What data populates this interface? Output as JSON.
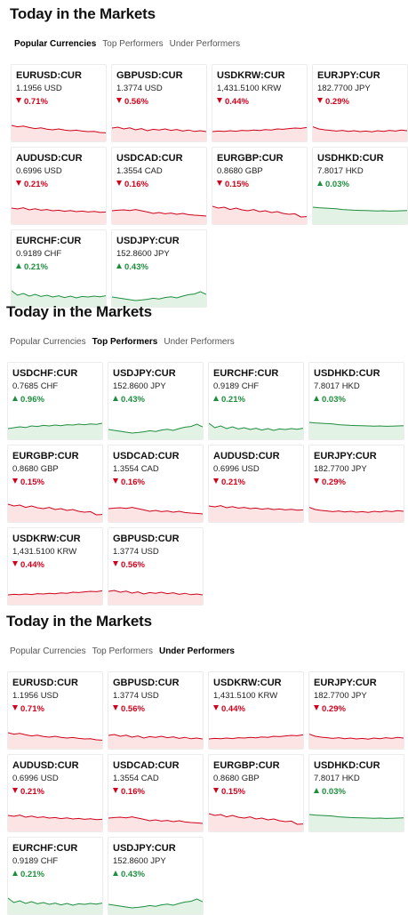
{
  "colors": {
    "down": "#d0021b",
    "up": "#1e8e3e",
    "down_fill": "#fde4e4",
    "up_fill": "#e2f2e5"
  },
  "sections": [
    {
      "title": "Today in the Markets",
      "tabs": [
        "Popular Currencies",
        "Top Performers",
        "Under Performers"
      ],
      "active_tab": 0,
      "cards": [
        {
          "symbol": "EURUSD:CUR",
          "price": "1.1956 USD",
          "change": "0.71%",
          "direction": "down",
          "spark": [
            0.7,
            0.62,
            0.66,
            0.58,
            0.52,
            0.56,
            0.49,
            0.45,
            0.5,
            0.44,
            0.4,
            0.43,
            0.38,
            0.35,
            0.36,
            0.3,
            0.28
          ]
        },
        {
          "symbol": "GBPUSD:CUR",
          "price": "1.3774 USD",
          "change": "0.56%",
          "direction": "down",
          "spark": [
            0.55,
            0.6,
            0.5,
            0.56,
            0.45,
            0.52,
            0.4,
            0.48,
            0.44,
            0.5,
            0.42,
            0.47,
            0.38,
            0.44,
            0.36,
            0.4,
            0.35
          ]
        },
        {
          "symbol": "USDKRW:CUR",
          "price": "1,431.5100 KRW",
          "change": "0.44%",
          "direction": "down",
          "spark": [
            0.35,
            0.38,
            0.36,
            0.4,
            0.37,
            0.42,
            0.4,
            0.44,
            0.41,
            0.46,
            0.44,
            0.5,
            0.48,
            0.52,
            0.55,
            0.53,
            0.58
          ]
        },
        {
          "symbol": "EURJPY:CUR",
          "price": "182.7700 JPY",
          "change": "0.29%",
          "direction": "down",
          "spark": [
            0.62,
            0.5,
            0.45,
            0.42,
            0.38,
            0.42,
            0.36,
            0.4,
            0.35,
            0.38,
            0.34,
            0.4,
            0.36,
            0.42,
            0.38,
            0.44,
            0.4
          ]
        },
        {
          "symbol": "AUDUSD:CUR",
          "price": "0.6996 USD",
          "change": "0.21%",
          "direction": "down",
          "spark": [
            0.7,
            0.65,
            0.72,
            0.6,
            0.66,
            0.58,
            0.62,
            0.55,
            0.58,
            0.52,
            0.56,
            0.5,
            0.53,
            0.48,
            0.51,
            0.46,
            0.48
          ]
        },
        {
          "symbol": "USDCAD:CUR",
          "price": "1.3554 CAD",
          "change": "0.16%",
          "direction": "down",
          "spark": [
            0.55,
            0.58,
            0.6,
            0.56,
            0.62,
            0.55,
            0.48,
            0.4,
            0.45,
            0.38,
            0.42,
            0.35,
            0.4,
            0.33,
            0.3,
            0.28,
            0.25
          ]
        },
        {
          "symbol": "EURGBP:CUR",
          "price": "0.8680 GBP",
          "change": "0.15%",
          "direction": "down",
          "spark": [
            0.8,
            0.7,
            0.75,
            0.62,
            0.7,
            0.6,
            0.55,
            0.62,
            0.5,
            0.55,
            0.45,
            0.5,
            0.4,
            0.35,
            0.38,
            0.2,
            0.22
          ]
        },
        {
          "symbol": "USDHKD:CUR",
          "price": "7.8017 HKD",
          "change": "0.03%",
          "direction": "up",
          "spark": [
            0.75,
            0.72,
            0.7,
            0.68,
            0.66,
            0.62,
            0.6,
            0.58,
            0.57,
            0.56,
            0.55,
            0.54,
            0.55,
            0.53,
            0.54,
            0.55,
            0.56
          ]
        },
        {
          "symbol": "EURCHF:CUR",
          "price": "0.9189 CHF",
          "change": "0.21%",
          "direction": "up",
          "spark": [
            0.7,
            0.45,
            0.55,
            0.4,
            0.5,
            0.38,
            0.45,
            0.35,
            0.42,
            0.32,
            0.4,
            0.3,
            0.38,
            0.35,
            0.4,
            0.36,
            0.42
          ]
        },
        {
          "symbol": "USDJPY:CUR",
          "price": "152.8600 JPY",
          "change": "0.43%",
          "direction": "up",
          "spark": [
            0.35,
            0.3,
            0.25,
            0.2,
            0.15,
            0.18,
            0.22,
            0.28,
            0.24,
            0.32,
            0.36,
            0.3,
            0.4,
            0.48,
            0.52,
            0.65,
            0.5
          ]
        }
      ]
    },
    {
      "title": "Today in the Markets",
      "tabs": [
        "Popular Currencies",
        "Top Performers",
        "Under Performers"
      ],
      "active_tab": 1,
      "cards": [
        {
          "symbol": "USDCHF:CUR",
          "price": "0.7685 CHF",
          "change": "0.96%",
          "direction": "up",
          "spark": [
            0.4,
            0.45,
            0.5,
            0.46,
            0.55,
            0.52,
            0.58,
            0.55,
            0.6,
            0.56,
            0.62,
            0.6,
            0.65,
            0.62,
            0.66,
            0.64,
            0.7
          ]
        },
        {
          "symbol": "USDJPY:CUR",
          "price": "152.8600 JPY",
          "change": "0.43%",
          "direction": "up",
          "spark": [
            0.35,
            0.3,
            0.25,
            0.2,
            0.15,
            0.18,
            0.22,
            0.28,
            0.24,
            0.32,
            0.36,
            0.3,
            0.4,
            0.48,
            0.52,
            0.65,
            0.5
          ]
        },
        {
          "symbol": "EURCHF:CUR",
          "price": "0.9189 CHF",
          "change": "0.21%",
          "direction": "up",
          "spark": [
            0.7,
            0.45,
            0.55,
            0.4,
            0.5,
            0.38,
            0.45,
            0.35,
            0.42,
            0.32,
            0.4,
            0.3,
            0.38,
            0.35,
            0.4,
            0.36,
            0.42
          ]
        },
        {
          "symbol": "USDHKD:CUR",
          "price": "7.8017 HKD",
          "change": "0.03%",
          "direction": "up",
          "spark": [
            0.75,
            0.72,
            0.7,
            0.68,
            0.66,
            0.62,
            0.6,
            0.58,
            0.57,
            0.56,
            0.55,
            0.54,
            0.55,
            0.53,
            0.54,
            0.55,
            0.56
          ]
        },
        {
          "symbol": "EURGBP:CUR",
          "price": "0.8680 GBP",
          "change": "0.15%",
          "direction": "down",
          "spark": [
            0.8,
            0.7,
            0.75,
            0.62,
            0.7,
            0.6,
            0.55,
            0.62,
            0.5,
            0.55,
            0.45,
            0.5,
            0.4,
            0.35,
            0.38,
            0.2,
            0.22
          ]
        },
        {
          "symbol": "USDCAD:CUR",
          "price": "1.3554 CAD",
          "change": "0.16%",
          "direction": "down",
          "spark": [
            0.55,
            0.58,
            0.6,
            0.56,
            0.62,
            0.55,
            0.48,
            0.4,
            0.45,
            0.38,
            0.42,
            0.35,
            0.4,
            0.33,
            0.3,
            0.28,
            0.25
          ]
        },
        {
          "symbol": "AUDUSD:CUR",
          "price": "0.6996 USD",
          "change": "0.21%",
          "direction": "down",
          "spark": [
            0.7,
            0.65,
            0.72,
            0.6,
            0.66,
            0.58,
            0.62,
            0.55,
            0.58,
            0.52,
            0.56,
            0.5,
            0.53,
            0.48,
            0.51,
            0.46,
            0.48
          ]
        },
        {
          "symbol": "EURJPY:CUR",
          "price": "182.7700 JPY",
          "change": "0.29%",
          "direction": "down",
          "spark": [
            0.62,
            0.5,
            0.45,
            0.42,
            0.38,
            0.42,
            0.36,
            0.4,
            0.35,
            0.38,
            0.34,
            0.4,
            0.36,
            0.42,
            0.38,
            0.44,
            0.4
          ]
        },
        {
          "symbol": "USDKRW:CUR",
          "price": "1,431.5100 KRW",
          "change": "0.44%",
          "direction": "down",
          "spark": [
            0.35,
            0.38,
            0.36,
            0.4,
            0.37,
            0.42,
            0.4,
            0.44,
            0.41,
            0.46,
            0.44,
            0.5,
            0.48,
            0.52,
            0.55,
            0.53,
            0.58
          ]
        },
        {
          "symbol": "GBPUSD:CUR",
          "price": "1.3774 USD",
          "change": "0.56%",
          "direction": "down",
          "spark": [
            0.55,
            0.6,
            0.5,
            0.56,
            0.45,
            0.52,
            0.4,
            0.48,
            0.44,
            0.5,
            0.42,
            0.47,
            0.38,
            0.44,
            0.36,
            0.4,
            0.35
          ]
        }
      ]
    },
    {
      "title": "Today in the Markets",
      "tabs": [
        "Popular Currencies",
        "Top Performers",
        "Under Performers"
      ],
      "active_tab": 2,
      "cards": [
        {
          "symbol": "EURUSD:CUR",
          "price": "1.1956 USD",
          "change": "0.71%",
          "direction": "down",
          "spark": [
            0.7,
            0.62,
            0.66,
            0.58,
            0.52,
            0.56,
            0.49,
            0.45,
            0.5,
            0.44,
            0.4,
            0.43,
            0.38,
            0.35,
            0.36,
            0.3,
            0.28
          ]
        },
        {
          "symbol": "GBPUSD:CUR",
          "price": "1.3774 USD",
          "change": "0.56%",
          "direction": "down",
          "spark": [
            0.55,
            0.6,
            0.5,
            0.56,
            0.45,
            0.52,
            0.4,
            0.48,
            0.44,
            0.5,
            0.42,
            0.47,
            0.38,
            0.44,
            0.36,
            0.4,
            0.35
          ]
        },
        {
          "symbol": "USDKRW:CUR",
          "price": "1,431.5100 KRW",
          "change": "0.44%",
          "direction": "down",
          "spark": [
            0.35,
            0.38,
            0.36,
            0.4,
            0.37,
            0.42,
            0.4,
            0.44,
            0.41,
            0.46,
            0.44,
            0.5,
            0.48,
            0.52,
            0.55,
            0.53,
            0.58
          ]
        },
        {
          "symbol": "EURJPY:CUR",
          "price": "182.7700 JPY",
          "change": "0.29%",
          "direction": "down",
          "spark": [
            0.62,
            0.5,
            0.45,
            0.42,
            0.38,
            0.42,
            0.36,
            0.4,
            0.35,
            0.38,
            0.34,
            0.4,
            0.36,
            0.42,
            0.38,
            0.44,
            0.4
          ]
        },
        {
          "symbol": "AUDUSD:CUR",
          "price": "0.6996 USD",
          "change": "0.21%",
          "direction": "down",
          "spark": [
            0.7,
            0.65,
            0.72,
            0.6,
            0.66,
            0.58,
            0.62,
            0.55,
            0.58,
            0.52,
            0.56,
            0.5,
            0.53,
            0.48,
            0.51,
            0.46,
            0.48
          ]
        },
        {
          "symbol": "USDCAD:CUR",
          "price": "1.3554 CAD",
          "change": "0.16%",
          "direction": "down",
          "spark": [
            0.55,
            0.58,
            0.6,
            0.56,
            0.62,
            0.55,
            0.48,
            0.4,
            0.45,
            0.38,
            0.42,
            0.35,
            0.4,
            0.33,
            0.3,
            0.28,
            0.25
          ]
        },
        {
          "symbol": "EURGBP:CUR",
          "price": "0.8680 GBP",
          "change": "0.15%",
          "direction": "down",
          "spark": [
            0.8,
            0.7,
            0.75,
            0.62,
            0.7,
            0.6,
            0.55,
            0.62,
            0.5,
            0.55,
            0.45,
            0.5,
            0.4,
            0.35,
            0.38,
            0.2,
            0.22
          ]
        },
        {
          "symbol": "USDHKD:CUR",
          "price": "7.8017 HKD",
          "change": "0.03%",
          "direction": "up",
          "spark": [
            0.75,
            0.72,
            0.7,
            0.68,
            0.66,
            0.62,
            0.6,
            0.58,
            0.57,
            0.56,
            0.55,
            0.54,
            0.55,
            0.53,
            0.54,
            0.55,
            0.56
          ]
        },
        {
          "symbol": "EURCHF:CUR",
          "price": "0.9189 CHF",
          "change": "0.21%",
          "direction": "up",
          "spark": [
            0.7,
            0.45,
            0.55,
            0.4,
            0.5,
            0.38,
            0.45,
            0.35,
            0.42,
            0.32,
            0.4,
            0.3,
            0.38,
            0.35,
            0.4,
            0.36,
            0.42
          ]
        },
        {
          "symbol": "USDJPY:CUR",
          "price": "152.8600 JPY",
          "change": "0.43%",
          "direction": "up",
          "spark": [
            0.35,
            0.3,
            0.25,
            0.2,
            0.15,
            0.18,
            0.22,
            0.28,
            0.24,
            0.32,
            0.36,
            0.3,
            0.4,
            0.48,
            0.52,
            0.65,
            0.5
          ]
        }
      ]
    }
  ]
}
